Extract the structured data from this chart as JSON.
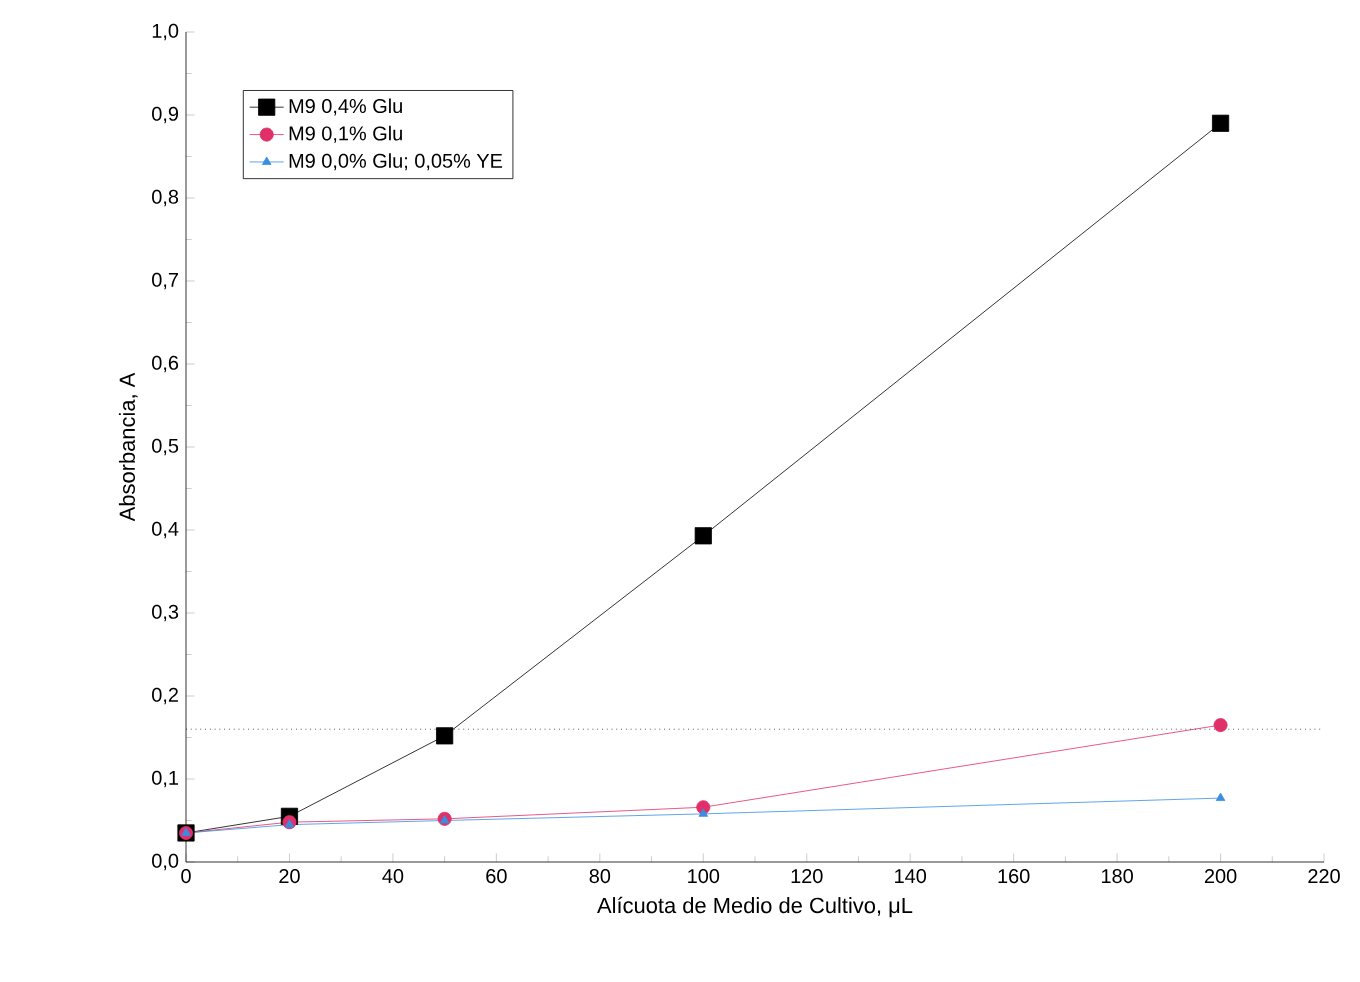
{
  "chart_data": {
    "type": "line",
    "xlabel": "Alícuota de Medio de Cultivo, μL",
    "ylabel": "Absorbancia, A",
    "x": [
      0,
      20,
      50,
      100,
      200
    ],
    "series": [
      {
        "name": "M9 0,4% Glu",
        "color": "#000000",
        "marker": "square",
        "values": [
          0.035,
          0.055,
          0.152,
          0.393,
          0.89
        ]
      },
      {
        "name": "M9 0,1% Glu",
        "color": "#e0306a",
        "marker": "circle",
        "values": [
          0.035,
          0.048,
          0.052,
          0.066,
          0.165
        ]
      },
      {
        "name": "M9 0,0% Glu; 0,05% YE",
        "color": "#3a8ee0",
        "marker": "triangle",
        "values": [
          0.035,
          0.045,
          0.05,
          0.058,
          0.077
        ]
      }
    ],
    "ref_lines": [
      {
        "axis": "y",
        "value": 0.16,
        "line_style": "dotted",
        "color": "#000000"
      }
    ],
    "xlim": [
      0,
      220
    ],
    "xticks": [
      0,
      20,
      40,
      60,
      80,
      100,
      120,
      140,
      160,
      180,
      200,
      220
    ],
    "ylim": [
      0,
      1.0
    ],
    "yticks": [
      {
        "value": 0,
        "label": "0,0"
      },
      {
        "value": 0.1,
        "label": "0,1"
      },
      {
        "value": 0.2,
        "label": "0,2"
      },
      {
        "value": 0.3,
        "label": "0,3"
      },
      {
        "value": 0.4,
        "label": "0,4"
      },
      {
        "value": 0.5,
        "label": "0,5"
      },
      {
        "value": 0.6,
        "label": "0,6"
      },
      {
        "value": 0.7,
        "label": "0,7"
      },
      {
        "value": 0.8,
        "label": "0,8"
      },
      {
        "value": 0.9,
        "label": "0,9"
      },
      {
        "value": 1.0,
        "label": "1,0"
      }
    ],
    "grid": false,
    "legend": "top left",
    "line_style": "solid"
  }
}
